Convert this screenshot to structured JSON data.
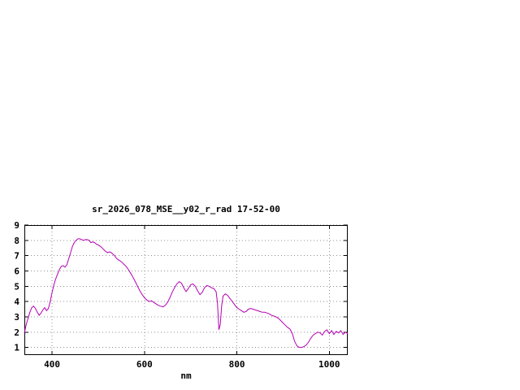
{
  "chart": {
    "title": "sr_2026_078_MSE__y02_r_rad 17-52-00",
    "x_axis_label": "nm",
    "background_color": "#ffffff"
  },
  "chart_data": {
    "type": "line",
    "title": "sr_2026_078_MSE__y02_r_rad 17-52-00",
    "xlabel": "nm",
    "ylabel": "",
    "xlim": [
      340,
      1040
    ],
    "ylim": [
      0.5,
      9
    ],
    "xticks": [
      400,
      600,
      800,
      1000
    ],
    "yticks": [
      1,
      2,
      3,
      4,
      5,
      6,
      7,
      8,
      9
    ],
    "grid": true,
    "grid_style": "dotted",
    "grid_color": "#909090",
    "border_color": "#000000",
    "legend": "none",
    "series": [
      {
        "name": "sr_2026_078_MSE__y02_r_rad",
        "color": "#b400b4",
        "points": [
          [
            340,
            1.95
          ],
          [
            344,
            2.5
          ],
          [
            348,
            2.9
          ],
          [
            352,
            3.3
          ],
          [
            356,
            3.6
          ],
          [
            360,
            3.7
          ],
          [
            364,
            3.55
          ],
          [
            368,
            3.3
          ],
          [
            372,
            3.1
          ],
          [
            376,
            3.25
          ],
          [
            380,
            3.45
          ],
          [
            384,
            3.6
          ],
          [
            388,
            3.4
          ],
          [
            392,
            3.55
          ],
          [
            396,
            4.0
          ],
          [
            400,
            4.6
          ],
          [
            404,
            5.1
          ],
          [
            408,
            5.5
          ],
          [
            412,
            5.8
          ],
          [
            416,
            6.1
          ],
          [
            420,
            6.3
          ],
          [
            424,
            6.35
          ],
          [
            428,
            6.25
          ],
          [
            432,
            6.4
          ],
          [
            436,
            6.8
          ],
          [
            440,
            7.2
          ],
          [
            444,
            7.6
          ],
          [
            448,
            7.85
          ],
          [
            452,
            8.0
          ],
          [
            456,
            8.1
          ],
          [
            460,
            8.1
          ],
          [
            464,
            8.05
          ],
          [
            468,
            8.0
          ],
          [
            472,
            8.05
          ],
          [
            476,
            8.05
          ],
          [
            480,
            8.0
          ],
          [
            484,
            7.85
          ],
          [
            488,
            7.9
          ],
          [
            492,
            7.85
          ],
          [
            496,
            7.75
          ],
          [
            500,
            7.7
          ],
          [
            505,
            7.6
          ],
          [
            510,
            7.45
          ],
          [
            515,
            7.3
          ],
          [
            520,
            7.2
          ],
          [
            525,
            7.25
          ],
          [
            530,
            7.15
          ],
          [
            535,
            7.0
          ],
          [
            540,
            6.8
          ],
          [
            545,
            6.7
          ],
          [
            550,
            6.6
          ],
          [
            555,
            6.45
          ],
          [
            560,
            6.3
          ],
          [
            565,
            6.1
          ],
          [
            570,
            5.85
          ],
          [
            575,
            5.6
          ],
          [
            580,
            5.3
          ],
          [
            585,
            5.0
          ],
          [
            590,
            4.7
          ],
          [
            595,
            4.45
          ],
          [
            600,
            4.25
          ],
          [
            605,
            4.1
          ],
          [
            610,
            4.0
          ],
          [
            615,
            4.05
          ],
          [
            620,
            3.95
          ],
          [
            625,
            3.85
          ],
          [
            630,
            3.75
          ],
          [
            635,
            3.7
          ],
          [
            640,
            3.65
          ],
          [
            645,
            3.75
          ],
          [
            650,
            3.95
          ],
          [
            655,
            4.25
          ],
          [
            660,
            4.6
          ],
          [
            665,
            4.9
          ],
          [
            670,
            5.15
          ],
          [
            675,
            5.3
          ],
          [
            680,
            5.2
          ],
          [
            685,
            4.9
          ],
          [
            690,
            4.65
          ],
          [
            695,
            4.85
          ],
          [
            700,
            5.1
          ],
          [
            705,
            5.15
          ],
          [
            710,
            5.0
          ],
          [
            715,
            4.7
          ],
          [
            720,
            4.45
          ],
          [
            725,
            4.6
          ],
          [
            730,
            4.9
          ],
          [
            735,
            5.05
          ],
          [
            740,
            5.0
          ],
          [
            745,
            4.9
          ],
          [
            750,
            4.85
          ],
          [
            755,
            4.65
          ],
          [
            758,
            3.9
          ],
          [
            761,
            2.15
          ],
          [
            764,
            2.5
          ],
          [
            767,
            3.7
          ],
          [
            770,
            4.35
          ],
          [
            775,
            4.5
          ],
          [
            780,
            4.4
          ],
          [
            785,
            4.2
          ],
          [
            790,
            4.0
          ],
          [
            795,
            3.8
          ],
          [
            800,
            3.6
          ],
          [
            805,
            3.5
          ],
          [
            810,
            3.4
          ],
          [
            815,
            3.3
          ],
          [
            820,
            3.35
          ],
          [
            825,
            3.5
          ],
          [
            830,
            3.55
          ],
          [
            835,
            3.5
          ],
          [
            840,
            3.45
          ],
          [
            845,
            3.4
          ],
          [
            850,
            3.35
          ],
          [
            855,
            3.3
          ],
          [
            860,
            3.3
          ],
          [
            865,
            3.25
          ],
          [
            870,
            3.2
          ],
          [
            875,
            3.1
          ],
          [
            880,
            3.05
          ],
          [
            885,
            3.0
          ],
          [
            890,
            2.9
          ],
          [
            895,
            2.75
          ],
          [
            900,
            2.6
          ],
          [
            905,
            2.45
          ],
          [
            910,
            2.3
          ],
          [
            915,
            2.2
          ],
          [
            920,
            1.9
          ],
          [
            925,
            1.4
          ],
          [
            930,
            1.1
          ],
          [
            935,
            1.0
          ],
          [
            940,
            1.0
          ],
          [
            945,
            1.05
          ],
          [
            950,
            1.15
          ],
          [
            955,
            1.35
          ],
          [
            960,
            1.6
          ],
          [
            965,
            1.8
          ],
          [
            970,
            1.9
          ],
          [
            975,
            2.0
          ],
          [
            980,
            1.95
          ],
          [
            985,
            1.8
          ],
          [
            990,
            2.05
          ],
          [
            995,
            2.15
          ],
          [
            1000,
            1.9
          ],
          [
            1005,
            2.1
          ],
          [
            1010,
            1.85
          ],
          [
            1015,
            2.05
          ],
          [
            1020,
            1.95
          ],
          [
            1025,
            2.1
          ],
          [
            1030,
            1.85
          ],
          [
            1035,
            2.0
          ],
          [
            1040,
            1.9
          ]
        ]
      }
    ]
  }
}
